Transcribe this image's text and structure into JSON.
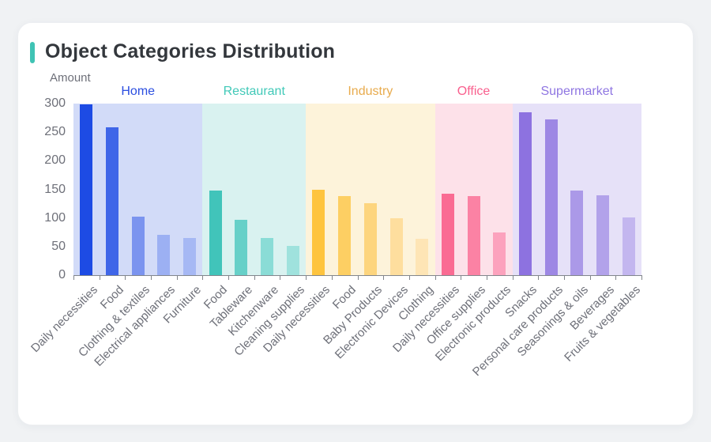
{
  "page": {
    "background_color": "#f0f2f4",
    "card_color": "#ffffff"
  },
  "header": {
    "accent_color": "#3fc3b4"
  },
  "chart_data": {
    "type": "bar",
    "title": "Object Categories Distribution",
    "ylabel": "Amount",
    "xlabel": "",
    "ylim": [
      0,
      300
    ],
    "y_ticks": [
      300,
      250,
      200,
      150,
      100,
      50,
      0
    ],
    "grid": false,
    "legend_position": "group-labels-above-bands",
    "axis_text_color": "#6e7079",
    "axis_line_color": "#82868c",
    "groups": [
      {
        "name": "Home",
        "label_color": "#2b4ee0",
        "band_color": "#d2dbf8",
        "categories": [
          "Daily necessities",
          "Food",
          "Clothing & textiles",
          "Electrical appliances",
          "Furniture"
        ],
        "values": [
          298,
          258,
          103,
          70,
          65
        ],
        "bar_colors": [
          "#1d4be4",
          "#3f66e8",
          "#7b94ef",
          "#9cb0f3",
          "#a6b8f4"
        ]
      },
      {
        "name": "Restaurant",
        "label_color": "#41c9b8",
        "band_color": "#d9f2f0",
        "categories": [
          "Food",
          "Tableware",
          "Kitchenware",
          "Cleaning supplies"
        ],
        "values": [
          148,
          97,
          65,
          51
        ],
        "bar_colors": [
          "#41c4ba",
          "#66d0c8",
          "#8adcd6",
          "#9fe2dd"
        ]
      },
      {
        "name": "Industry",
        "label_color": "#e8ab4d",
        "band_color": "#fdf3da",
        "categories": [
          "Daily necessities",
          "Food",
          "Baby Products",
          "Electronic Devices",
          "Clothing"
        ],
        "values": [
          150,
          138,
          126,
          100,
          64
        ],
        "bar_colors": [
          "#fec43e",
          "#fdcf63",
          "#fdd57e",
          "#fede9e",
          "#fee5b5"
        ]
      },
      {
        "name": "Office",
        "label_color": "#f9608e",
        "band_color": "#fde1e9",
        "categories": [
          "Daily necessities",
          "Office supplies",
          "Electronic products"
        ],
        "values": [
          142,
          138,
          75
        ],
        "bar_colors": [
          "#fa6b93",
          "#fb82a4",
          "#fca2bd"
        ]
      },
      {
        "name": "Supermarket",
        "label_color": "#8f76e2",
        "band_color": "#e6e1f8",
        "categories": [
          "Snacks",
          "Personal care products",
          "Seasonings & oils",
          "Beverages",
          "Fruits & vegetables"
        ],
        "values": [
          285,
          272,
          148,
          140,
          101
        ],
        "bar_colors": [
          "#8d72e0",
          "#9d87e4",
          "#ab99e8",
          "#b2a2ea",
          "#c3b6ef"
        ]
      }
    ]
  }
}
